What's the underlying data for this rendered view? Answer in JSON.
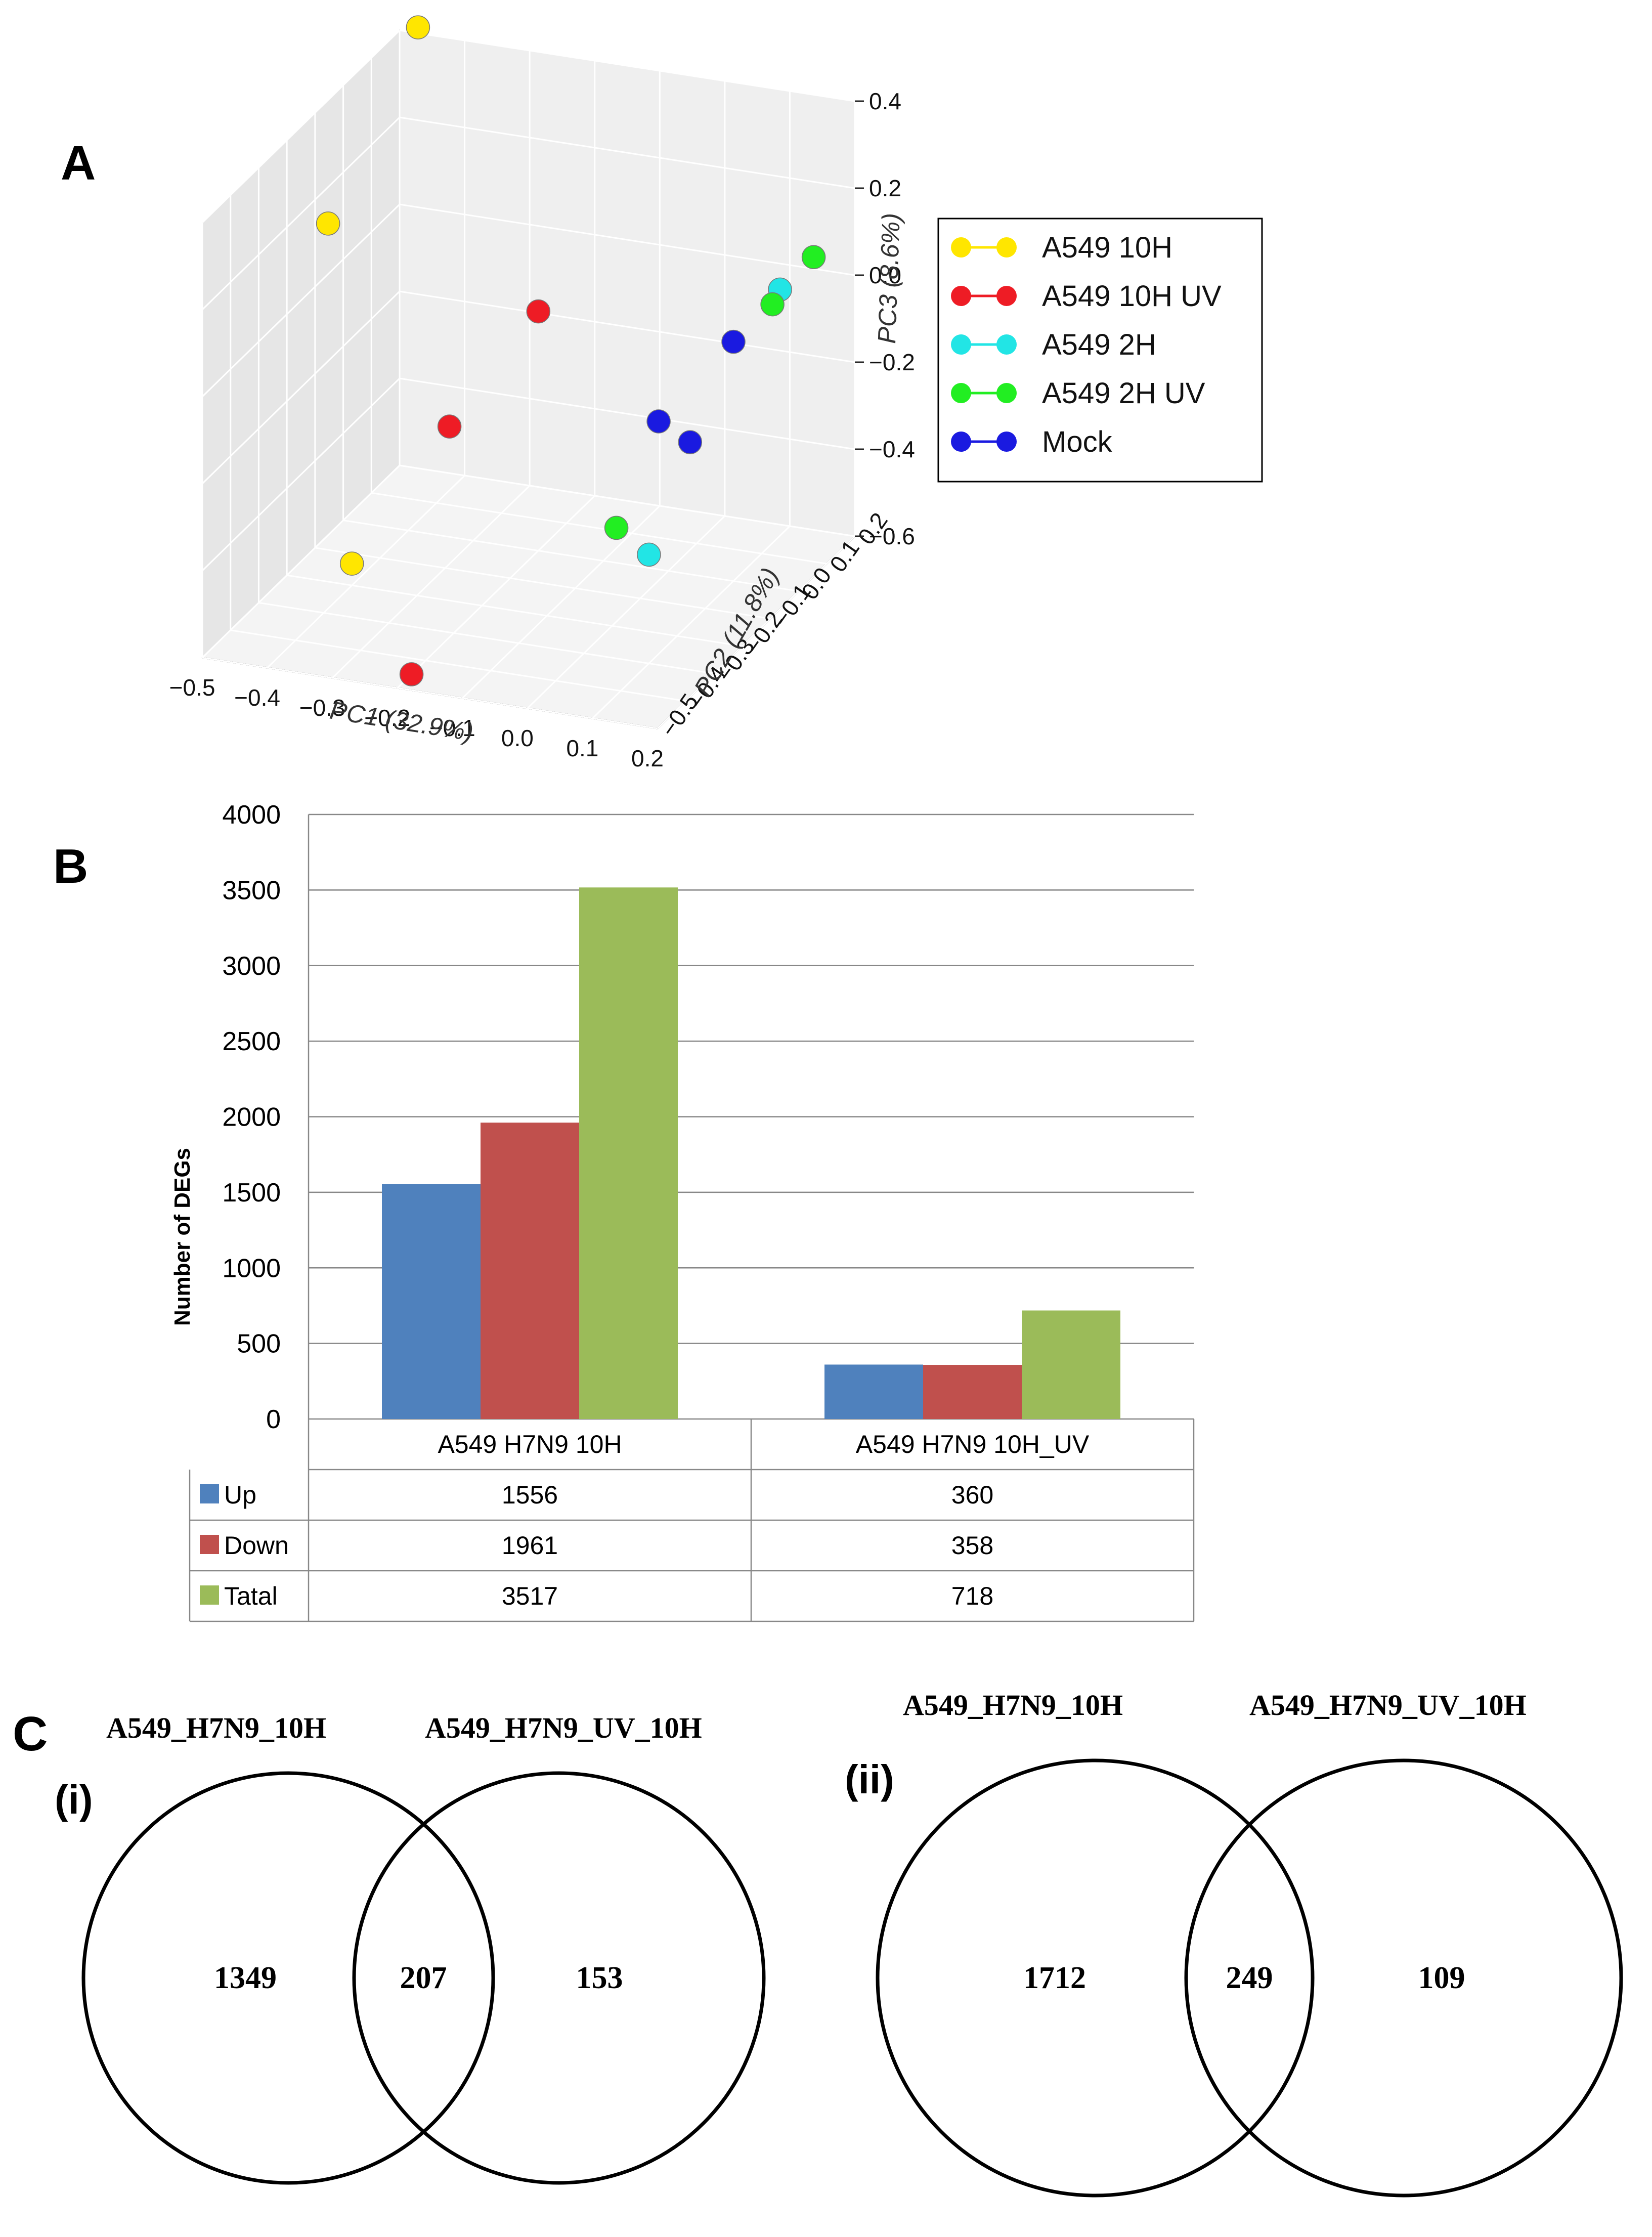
{
  "panels": {
    "A": {
      "letter": "A"
    },
    "B": {
      "letter": "B"
    },
    "C": {
      "letter": "C"
    }
  },
  "chart_data": [
    {
      "type": "scatter",
      "panel": "A",
      "xlabel": "PC1 (32.9%)",
      "ylabel": "PC2 (11.8%)",
      "zlabel": "PC3 (8.6%)",
      "xlim": [
        -0.5,
        0.2
      ],
      "ylim": [
        -0.5,
        0.2
      ],
      "zlim": [
        -0.6,
        0.4
      ],
      "x_ticks": [
        "−0.5",
        "−0.4",
        "−0.3",
        "−0.2",
        "−0.1",
        "0.0",
        "0.1",
        "0.2"
      ],
      "y_ticks": [
        "−0.5",
        "−0.4",
        "−0.3",
        "−0.2",
        "−0.1",
        "0.0",
        "0.1",
        "0.2"
      ],
      "z_ticks": [
        "0.4",
        "0.2",
        "0.0",
        "−0.2",
        "−0.4",
        "−0.6"
      ],
      "legend_position": "right",
      "series": [
        {
          "name": "A549 10H",
          "color": "#ffe600",
          "points": [
            [
              -0.45,
              0.15,
              0.45
            ],
            [
              -0.48,
              -0.1,
              0.15
            ],
            [
              -0.4,
              -0.2,
              -0.55
            ]
          ]
        },
        {
          "name": "A549 10H UV",
          "color": "#ee1c25",
          "points": [
            [
              -0.2,
              0.0,
              -0.05
            ],
            [
              -0.25,
              -0.2,
              -0.2
            ],
            [
              -0.2,
              -0.45,
              -0.6
            ]
          ]
        },
        {
          "name": "A549 2H",
          "color": "#22e5e5",
          "points": [
            [
              0.15,
              0.05,
              0.05
            ],
            [
              0.1,
              -0.3,
              -0.35
            ]
          ]
        },
        {
          "name": "A549 2H UV",
          "color": "#22ee22",
          "points": [
            [
              0.18,
              0.1,
              0.1
            ],
            [
              0.16,
              0.0,
              0.05
            ],
            [
              0.05,
              -0.3,
              -0.3
            ]
          ]
        },
        {
          "name": "Mock",
          "color": "#1a1ae0",
          "points": [
            [
              0.1,
              0.0,
              -0.05
            ],
            [
              0.05,
              -0.15,
              -0.15
            ],
            [
              0.12,
              -0.2,
              -0.15
            ]
          ]
        }
      ]
    },
    {
      "type": "bar",
      "panel": "B",
      "ylabel": "Number of DEGs",
      "ylim": [
        0,
        4000
      ],
      "y_ticks": [
        "0",
        "500",
        "1000",
        "1500",
        "2000",
        "2500",
        "3000",
        "3500",
        "4000"
      ],
      "categories": [
        "A549 H7N9 10H",
        "A549 H7N9 10H_UV"
      ],
      "series": [
        {
          "name": "Up",
          "color": "#4f81bd",
          "values": [
            1556,
            360
          ]
        },
        {
          "name": "Down",
          "color": "#c0504d",
          "values": [
            1961,
            358
          ]
        },
        {
          "name": "Tatal",
          "color": "#9bbb59",
          "values": [
            3517,
            718
          ]
        }
      ]
    }
  ],
  "table": {
    "rows": [
      {
        "label": "Up",
        "values": [
          "1556",
          "360"
        ]
      },
      {
        "label": "Down",
        "values": [
          "1961",
          "358"
        ]
      },
      {
        "label": "Tatal",
        "values": [
          "3517",
          "718"
        ]
      }
    ]
  },
  "venn": [
    {
      "tag": "(i)",
      "left_title": "A549_H7N9_10H",
      "right_title": "A549_H7N9_UV_10H",
      "left_only": "1349",
      "overlap": "207",
      "right_only": "153"
    },
    {
      "tag": "(ii)",
      "left_title": "A549_H7N9_10H",
      "right_title": "A549_H7N9_UV_10H",
      "left_only": "1712",
      "overlap": "249",
      "right_only": "109"
    }
  ]
}
